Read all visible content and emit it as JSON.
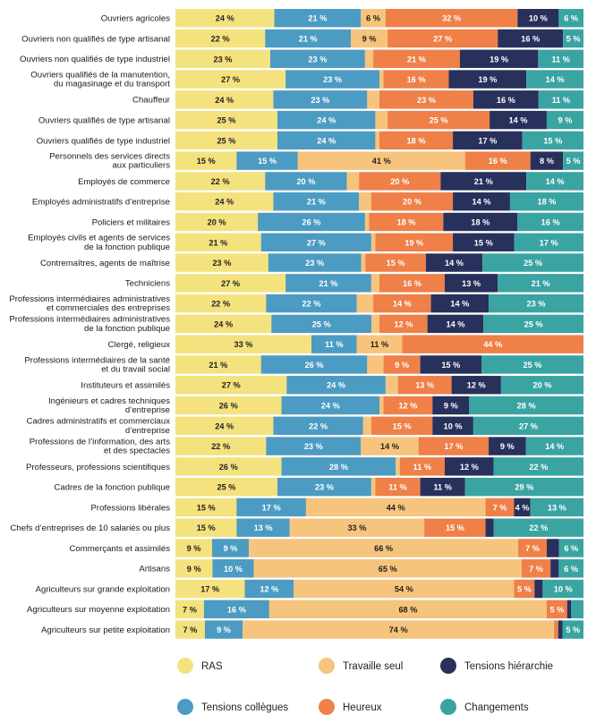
{
  "chart_data": {
    "type": "bar",
    "orientation": "horizontal",
    "stacked": true,
    "percent_stacked": true,
    "value_suffix": " %",
    "xlim": [
      0,
      100
    ],
    "grid": false,
    "legend_position": "bottom",
    "categories": [
      [
        "Ouvriers agricoles"
      ],
      [
        "Ouvriers non qualifiés de type artisanal"
      ],
      [
        "Ouvriers non qualifiés de type industriel"
      ],
      [
        "Ouvriers qualifiés de la manutention,",
        "du magasinage et du transport"
      ],
      [
        "Chauffeur"
      ],
      [
        "Ouvriers qualifiés de type artisanal"
      ],
      [
        "Ouvriers qualifiés de type industriel"
      ],
      [
        "Personnels des services directs",
        "aux particuliers"
      ],
      [
        "Employés de commerce"
      ],
      [
        "Employés administratifs d’entreprise"
      ],
      [
        "Policiers et militaires"
      ],
      [
        "Employés civils et agents de services",
        "de la fonction publique"
      ],
      [
        "Contremaîtres, agents de maîtrise"
      ],
      [
        "Techniciens"
      ],
      [
        "Professions intermédiaires administratives",
        "et commerciales des entreprises"
      ],
      [
        "Professions intermédiaires administratives",
        "de la fonction publique"
      ],
      [
        "Clergé, religieux"
      ],
      [
        "Professions intermédiaires de la santé",
        "et du travail social"
      ],
      [
        "Instituteurs et assimilés"
      ],
      [
        "Ingénieurs et cadres techniques",
        "d’entreprise"
      ],
      [
        "Cadres administratifs et commerciaux",
        "d’entreprise"
      ],
      [
        "Professions de l’information, des arts",
        "et des spectacles"
      ],
      [
        "Professeurs, professions scientifiques"
      ],
      [
        "Cadres de la fonction publique"
      ],
      [
        "Professions libérales"
      ],
      [
        "Chefs d’entreprises de 10 salariés ou plus"
      ],
      [
        "Commerçants et assimilés"
      ],
      [
        "Artisans"
      ],
      [
        "Agriculteurs sur grande exploitation"
      ],
      [
        "Agriculteurs sur moyenne exploitation"
      ],
      [
        "Agriculteurs sur petite exploitation"
      ]
    ],
    "series": [
      {
        "name": "RAS",
        "color": "#f4e27e",
        "values": [
          24,
          22,
          23,
          27,
          24,
          25,
          25,
          15,
          22,
          24,
          20,
          21,
          23,
          27,
          22,
          24,
          33,
          21,
          27,
          26,
          24,
          22,
          26,
          25,
          15,
          15,
          9,
          9,
          17,
          7,
          7
        ],
        "labels": [
          "24 %",
          "22 %",
          "23 %",
          "27 %",
          "24 %",
          "25 %",
          "25 %",
          "15 %",
          "22 %",
          "24 %",
          "20 %",
          "21 %",
          "23 %",
          "27 %",
          "22 %",
          "24 %",
          "33 %",
          "21 %",
          "27 %",
          "26 %",
          "24 %",
          "22 %",
          "26 %",
          "25 %",
          "15 %",
          "15 %",
          "9 %",
          "9 %",
          "17 %",
          "7 %",
          "7 %"
        ]
      },
      {
        "name": "Tensions collègues",
        "color": "#4c9bc2",
        "values": [
          21,
          21,
          23,
          23,
          23,
          24,
          24,
          15,
          20,
          21,
          26,
          27,
          23,
          21,
          22,
          25,
          11,
          26,
          24,
          24,
          22,
          23,
          28,
          23,
          17,
          13,
          9,
          10,
          12,
          16,
          9
        ],
        "labels": [
          "21 %",
          "21 %",
          "23 %",
          "23 %",
          "23 %",
          "24 %",
          "24 %",
          "15 %",
          "20 %",
          "21 %",
          "26 %",
          "27 %",
          "23 %",
          "21 %",
          "22 %",
          "25 %",
          "11 %",
          "26 %",
          "24 %",
          "24 %",
          "22 %",
          "23 %",
          "28 %",
          "23 %",
          "17 %",
          "13 %",
          "9 %",
          "10 %",
          "12 %",
          "16 %",
          "9 %"
        ]
      },
      {
        "name": "Travaille seul",
        "color": "#f6c47c",
        "values": [
          6,
          9,
          2,
          1,
          3,
          3,
          1,
          41,
          3,
          3,
          1,
          1,
          1,
          2,
          4,
          2,
          11,
          4,
          3,
          1,
          2,
          14,
          1,
          1,
          44,
          33,
          66,
          65,
          54,
          68,
          74
        ],
        "labels": [
          "6 %",
          "9 %",
          "",
          "",
          "",
          "",
          "",
          "41 %",
          "",
          "",
          "",
          "",
          "",
          "",
          "",
          "",
          "11 %",
          "",
          "",
          "",
          "",
          "14 %",
          "",
          "",
          "44 %",
          "33 %",
          "66 %",
          "65 %",
          "54 %",
          "68 %",
          "74 %"
        ]
      },
      {
        "name": "Heureux",
        "color": "#ee8048",
        "values": [
          32,
          27,
          21,
          16,
          23,
          25,
          18,
          16,
          20,
          20,
          18,
          19,
          15,
          16,
          14,
          12,
          44,
          9,
          13,
          12,
          15,
          17,
          11,
          11,
          7,
          15,
          7,
          7,
          5,
          5,
          1
        ],
        "labels": [
          "32 %",
          "27 %",
          "21 %",
          "16 %",
          "23 %",
          "25 %",
          "18 %",
          "16 %",
          "20 %",
          "20 %",
          "18 %",
          "19 %",
          "15 %",
          "16 %",
          "14 %",
          "12 %",
          "44 %",
          "9 %",
          "13 %",
          "12 %",
          "15 %",
          "17 %",
          "11 %",
          "11 %",
          "7 %",
          "15 %",
          "7 %",
          "7 %",
          "5 %",
          "5 %",
          ""
        ]
      },
      {
        "name": "Tensions hiérarchie",
        "color": "#28305c",
        "values": [
          10,
          16,
          19,
          19,
          16,
          14,
          17,
          8,
          21,
          14,
          18,
          15,
          14,
          13,
          14,
          14,
          0,
          15,
          12,
          9,
          10,
          9,
          12,
          11,
          4,
          2,
          3,
          2,
          2,
          1,
          1
        ],
        "labels": [
          "10 %",
          "16 %",
          "19 %",
          "19 %",
          "16 %",
          "14 %",
          "17 %",
          "8 %",
          "21 %",
          "14 %",
          "18 %",
          "15 %",
          "14 %",
          "13 %",
          "14 %",
          "14 %",
          "",
          "15 %",
          "12 %",
          "9 %",
          "10 %",
          "9 %",
          "12 %",
          "11 %",
          "4 %",
          "",
          "",
          "",
          "",
          "",
          ""
        ]
      },
      {
        "name": "Changements",
        "color": "#3aa4a2",
        "values": [
          6,
          5,
          11,
          14,
          11,
          9,
          15,
          5,
          14,
          18,
          16,
          17,
          25,
          21,
          23,
          25,
          0,
          25,
          20,
          28,
          27,
          14,
          22,
          29,
          13,
          22,
          6,
          6,
          10,
          3,
          5
        ],
        "labels": [
          "6 %",
          "5 %",
          "11 %",
          "14 %",
          "11 %",
          "9 %",
          "15 %",
          "5 %",
          "14 %",
          "18 %",
          "16 %",
          "17 %",
          "25 %",
          "21 %",
          "23 %",
          "25 %",
          "",
          "25 %",
          "20 %",
          "28 %",
          "27 %",
          "14 %",
          "22 %",
          "29 %",
          "13 %",
          "22 %",
          "6 %",
          "6 %",
          "10 %",
          "",
          "5 %"
        ]
      }
    ],
    "legend_order": [
      "RAS",
      "Travaille seul",
      "Tensions hiérarchie",
      "Tensions collègues",
      "Heureux",
      "Changements"
    ]
  }
}
